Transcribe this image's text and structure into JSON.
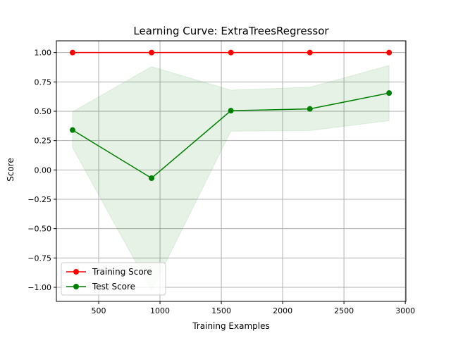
{
  "chart_data": {
    "type": "line",
    "title": "Learning Curve: ExtraTreesRegressor",
    "xlabel": "Training Examples",
    "ylabel": "Score",
    "xlim": [
      155,
      3005
    ],
    "ylim": [
      -1.12,
      1.1
    ],
    "xticks": [
      500,
      1000,
      1500,
      2000,
      2500,
      3000
    ],
    "yticks": [
      -1.0,
      -0.75,
      -0.5,
      -0.25,
      0.0,
      0.25,
      0.5,
      0.75,
      1.0
    ],
    "xtick_labels": [
      "500",
      "1000",
      "1500",
      "2000",
      "2500",
      "3000"
    ],
    "ytick_labels": [
      "−1.00",
      "−0.75",
      "−0.50",
      "−0.25",
      "0.00",
      "0.25",
      "0.50",
      "0.75",
      "1.00"
    ],
    "grid": true,
    "legend_position": "lower-left",
    "x": [
      287,
      931,
      1578,
      2222,
      2868
    ],
    "series": [
      {
        "name": "Training Score",
        "color": "#ff0000",
        "values": [
          1.0,
          1.0,
          1.0,
          1.0,
          1.0
        ],
        "band_lower": [
          1.0,
          1.0,
          1.0,
          1.0,
          1.0
        ],
        "band_upper": [
          1.0,
          1.0,
          1.0,
          1.0,
          1.0
        ]
      },
      {
        "name": "Test Score",
        "color": "#008000",
        "values": [
          0.34,
          -0.07,
          0.505,
          0.52,
          0.655
        ],
        "band_lower": [
          0.19,
          -1.03,
          0.33,
          0.335,
          0.42
        ],
        "band_upper": [
          0.495,
          0.88,
          0.68,
          0.705,
          0.89
        ],
        "band_color": "#008000"
      }
    ]
  }
}
